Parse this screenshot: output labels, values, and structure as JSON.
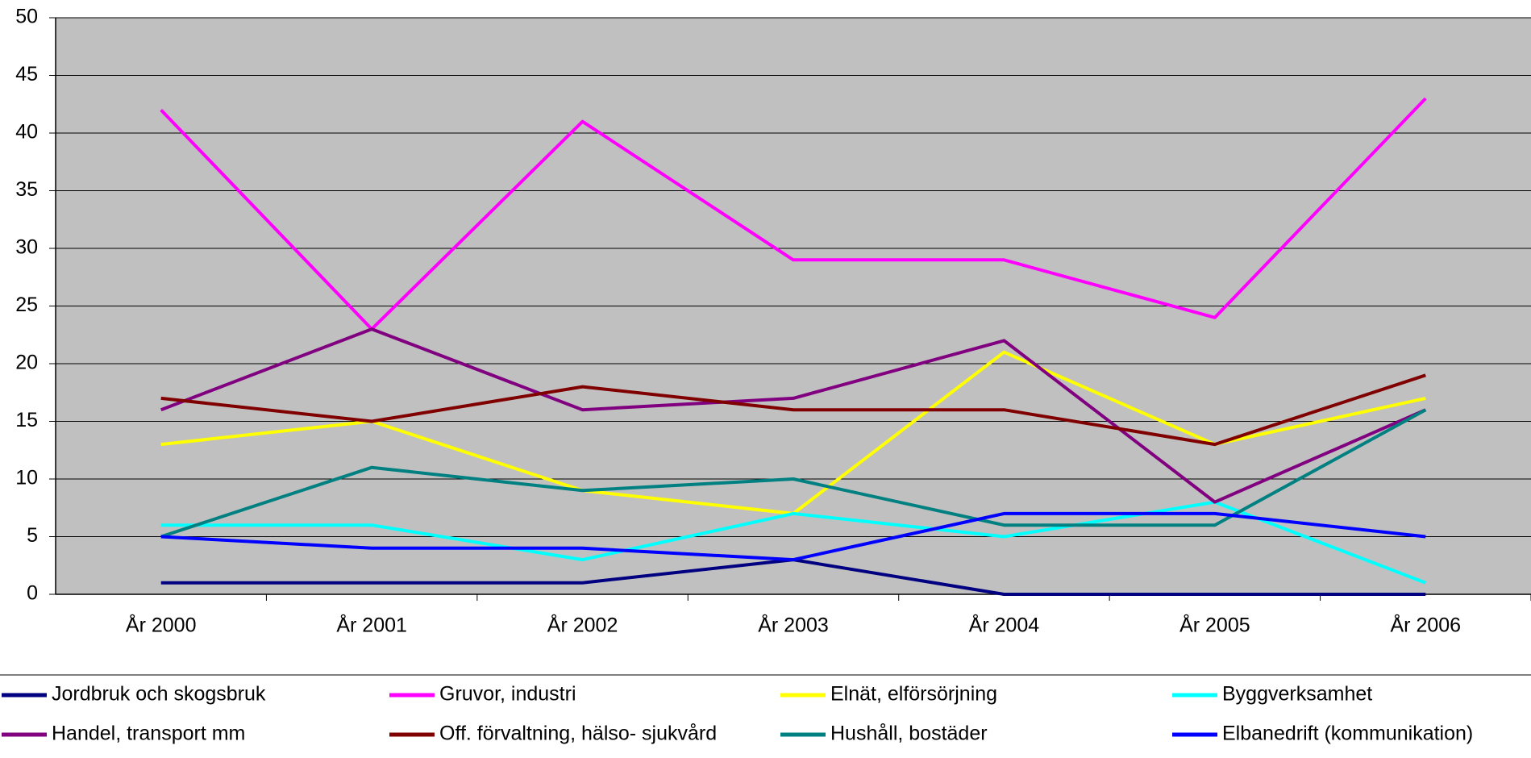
{
  "chart_data": {
    "type": "line",
    "categories": [
      "År 2000",
      "År 2001",
      "År 2002",
      "År 2003",
      "År 2004",
      "År 2005",
      "År 2006"
    ],
    "series": [
      {
        "name": "Jordbruk och skogsbruk",
        "color": "#000080",
        "values": [
          1,
          1,
          1,
          3,
          0,
          0,
          0
        ]
      },
      {
        "name": "Gruvor, industri",
        "color": "#ff00ff",
        "values": [
          42,
          23,
          41,
          29,
          29,
          24,
          43
        ]
      },
      {
        "name": "Elnät, elförsörjning",
        "color": "#ffff00",
        "values": [
          13,
          15,
          9,
          7,
          21,
          13,
          17
        ]
      },
      {
        "name": "Byggverksamhet",
        "color": "#00ffff",
        "values": [
          6,
          6,
          3,
          7,
          5,
          8,
          1
        ]
      },
      {
        "name": "Handel, transport mm",
        "color": "#800080",
        "values": [
          16,
          23,
          16,
          17,
          22,
          8,
          16
        ]
      },
      {
        "name": "Off. förvaltning, hälso- sjukvård",
        "color": "#800000",
        "values": [
          17,
          15,
          18,
          16,
          16,
          13,
          19
        ]
      },
      {
        "name": "Hushåll, bostäder",
        "color": "#008080",
        "values": [
          5,
          11,
          9,
          10,
          6,
          6,
          16
        ]
      },
      {
        "name": "Elbanedrift (kommunikation)",
        "color": "#0000ff",
        "values": [
          5,
          4,
          4,
          3,
          7,
          7,
          5
        ]
      }
    ],
    "ylim": [
      0,
      50
    ],
    "yticks": [
      0,
      5,
      10,
      15,
      20,
      25,
      30,
      35,
      40,
      45,
      50
    ],
    "grid": true,
    "legend": "bottom",
    "plot_background": "#c0c0c0"
  }
}
